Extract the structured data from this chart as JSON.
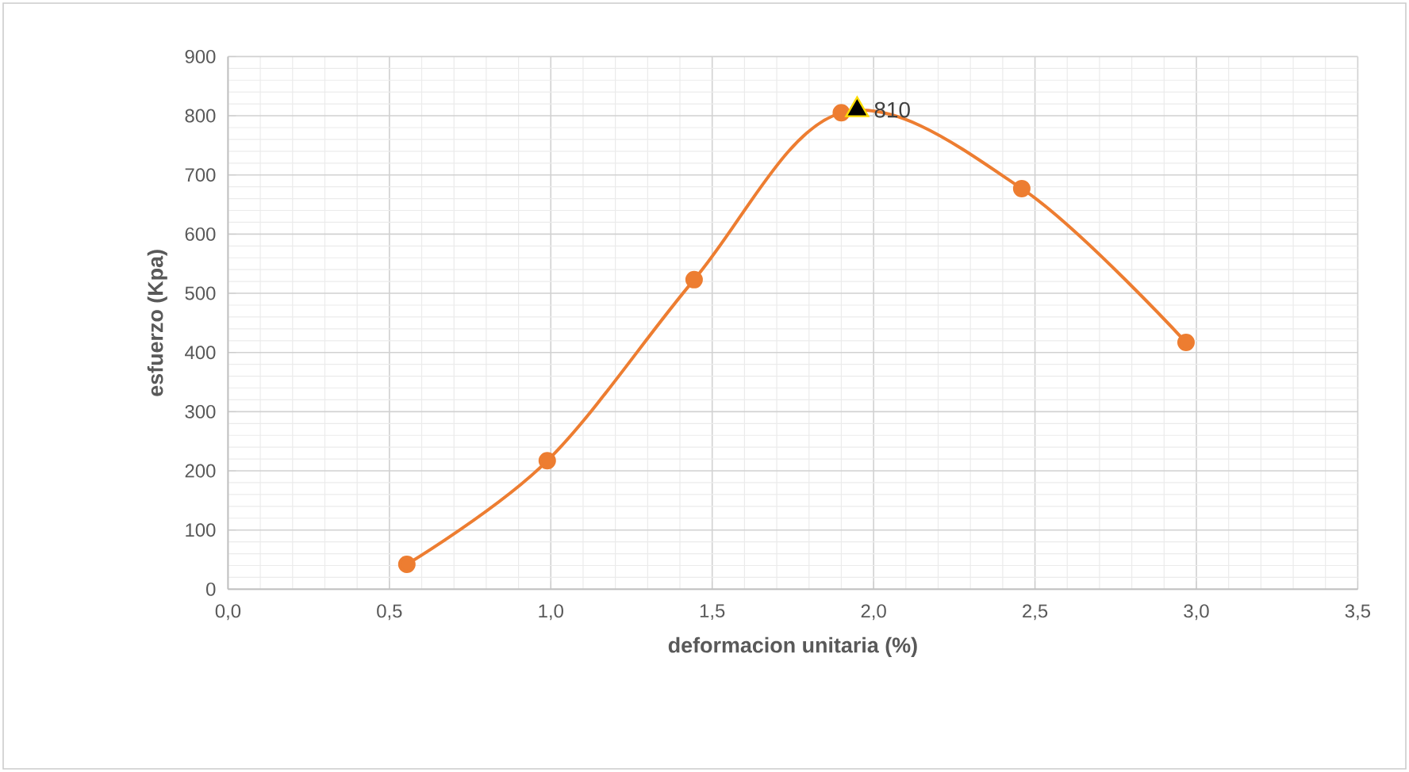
{
  "chart_data": {
    "type": "line",
    "xlabel": "deformacion unitaria (%)",
    "ylabel": "esfuerzo (Kpa)",
    "xlim": [
      0,
      3.5
    ],
    "xticks": [
      {
        "value": 0,
        "label": "0,0"
      },
      {
        "value": 0.5,
        "label": "0,5"
      },
      {
        "value": 1,
        "label": "1,0"
      },
      {
        "value": 1.5,
        "label": "1,5"
      },
      {
        "value": 2,
        "label": "2,0"
      },
      {
        "value": 2.5,
        "label": "2,5"
      },
      {
        "value": 3,
        "label": "3,0"
      },
      {
        "value": 3.5,
        "label": "3,5"
      }
    ],
    "ylim": [
      0,
      900
    ],
    "yticks": [
      0,
      100,
      200,
      300,
      400,
      500,
      600,
      700,
      800,
      900
    ],
    "grid": true,
    "series": [
      {
        "color": "#ed7d31",
        "marker": "circle",
        "x": [
          0.554,
          0.989,
          1.444,
          1.9,
          2.459,
          2.968
        ],
        "values": [
          42,
          217,
          523,
          805,
          677,
          417
        ]
      },
      {
        "type": "scatter",
        "color": "#000000",
        "marker": "triangle",
        "x": [
          1.949
        ],
        "values": [
          810
        ],
        "value_labels": [
          "810"
        ]
      }
    ]
  }
}
